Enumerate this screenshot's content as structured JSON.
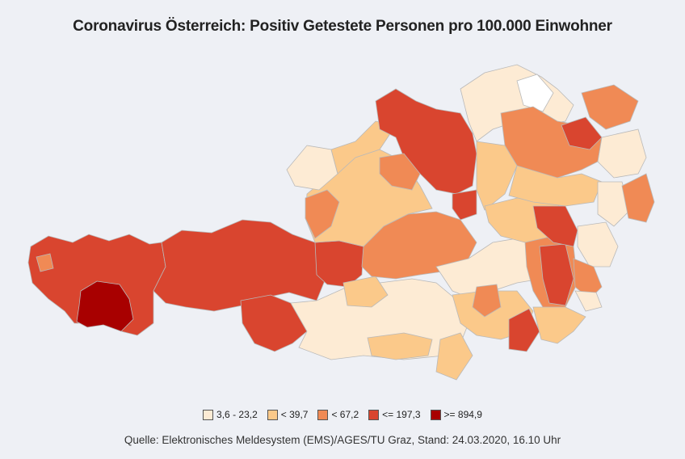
{
  "title": "Coronavirus Österreich: Positiv Getestete Personen pro 100.000 Einwohner",
  "source": "Quelle: Elektronisches Meldesystem (EMS)/AGES/TU Graz, Stand: 24.03.2020, 16.10 Uhr",
  "legend": [
    {
      "label": "3,6 - 23,2",
      "color": "#fdebd4"
    },
    {
      "label": "< 39,7",
      "color": "#fbc98a"
    },
    {
      "label": "< 67,2",
      "color": "#f08a55"
    },
    {
      "label": "<= 197,3",
      "color": "#d9452f"
    },
    {
      "label": ">= 894,9",
      "color": "#a80000"
    }
  ]
}
